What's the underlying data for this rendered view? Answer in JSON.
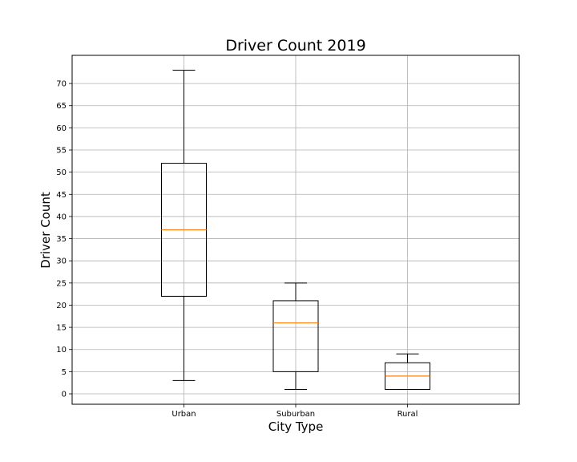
{
  "chart_data": {
    "type": "box",
    "title": "Driver Count 2019",
    "xlabel": "City Type",
    "ylabel": "Driver Count",
    "categories": [
      "Urban",
      "Suburban",
      "Rural"
    ],
    "boxes": [
      {
        "category": "Urban",
        "whisker_low": 3,
        "q1": 22,
        "median": 37,
        "q3": 52,
        "whisker_high": 73
      },
      {
        "category": "Suburban",
        "whisker_low": 1,
        "q1": 5,
        "median": 16,
        "q3": 21,
        "whisker_high": 25
      },
      {
        "category": "Rural",
        "whisker_low": 1,
        "q1": 1,
        "median": 4,
        "q3": 7,
        "whisker_high": 9
      }
    ],
    "ylim": [
      -2.35,
      76.35
    ],
    "yticks": [
      0,
      5,
      10,
      15,
      20,
      25,
      30,
      35,
      40,
      45,
      50,
      55,
      60,
      65,
      70
    ],
    "grid": true,
    "colors": {
      "median": "#ff7f0e",
      "box": "#000000",
      "grid": "#b0b0b0"
    }
  }
}
